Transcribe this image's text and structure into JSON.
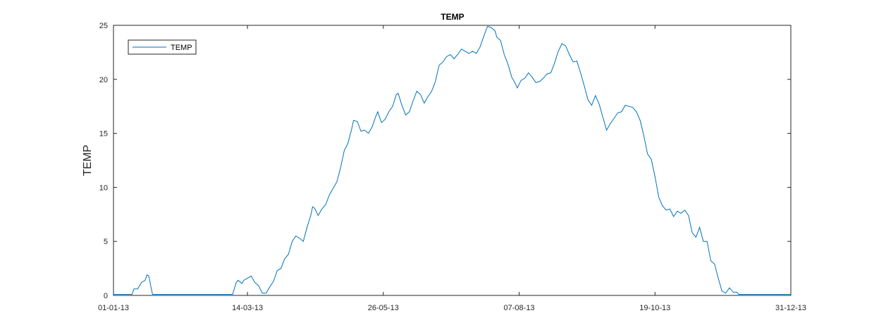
{
  "chart_data": {
    "type": "line",
    "title": "TEMP",
    "xlabel": "",
    "ylabel": "TEMP",
    "ylim": [
      0,
      25
    ],
    "yticks": [
      0,
      5,
      10,
      15,
      20,
      25
    ],
    "xlim": [
      "2013-01-01",
      "2013-12-31"
    ],
    "xticks": [
      "2013-01-01",
      "2013-03-14",
      "2013-05-26",
      "2013-08-07",
      "2013-10-19",
      "2013-12-31"
    ],
    "xtick_labels": [
      "01-01-13",
      "14-03-13",
      "26-05-13",
      "07-08-13",
      "19-10-13",
      "31-12-13"
    ],
    "grid": false,
    "legend": {
      "position": "top-left",
      "entries": [
        "TEMP"
      ]
    },
    "line_color": "#0072BD",
    "series": [
      {
        "name": "TEMP",
        "points": [
          [
            "2013-01-01",
            0.1
          ],
          [
            "2013-01-11",
            0.1
          ],
          [
            "2013-01-12",
            0.6
          ],
          [
            "2013-01-14",
            0.6
          ],
          [
            "2013-01-16",
            1.2
          ],
          [
            "2013-01-18",
            1.4
          ],
          [
            "2013-01-19",
            1.9
          ],
          [
            "2013-01-20",
            1.8
          ],
          [
            "2013-01-21",
            0.9
          ],
          [
            "2013-01-22",
            0.1
          ],
          [
            "2013-03-06",
            0.1
          ],
          [
            "2013-03-08",
            1.2
          ],
          [
            "2013-03-09",
            1.4
          ],
          [
            "2013-03-11",
            1.1
          ],
          [
            "2013-03-12",
            1.4
          ],
          [
            "2013-03-14",
            1.6
          ],
          [
            "2013-03-16",
            1.8
          ],
          [
            "2013-03-18",
            1.2
          ],
          [
            "2013-03-20",
            0.9
          ],
          [
            "2013-03-22",
            0.2
          ],
          [
            "2013-03-24",
            0.2
          ],
          [
            "2013-03-26",
            0.8
          ],
          [
            "2013-03-28",
            1.3
          ],
          [
            "2013-03-30",
            2.3
          ],
          [
            "2013-04-01",
            2.5
          ],
          [
            "2013-04-03",
            3.4
          ],
          [
            "2013-04-05",
            3.8
          ],
          [
            "2013-04-07",
            5.0
          ],
          [
            "2013-04-09",
            5.5
          ],
          [
            "2013-04-11",
            5.3
          ],
          [
            "2013-04-13",
            5.0
          ],
          [
            "2013-04-15",
            6.3
          ],
          [
            "2013-04-17",
            7.4
          ],
          [
            "2013-04-18",
            8.2
          ],
          [
            "2013-04-19",
            8.1
          ],
          [
            "2013-04-21",
            7.4
          ],
          [
            "2013-04-23",
            8.0
          ],
          [
            "2013-04-25",
            8.4
          ],
          [
            "2013-04-27",
            9.3
          ],
          [
            "2013-04-29",
            9.9
          ],
          [
            "2013-05-01",
            10.5
          ],
          [
            "2013-05-03",
            11.8
          ],
          [
            "2013-05-05",
            13.4
          ],
          [
            "2013-05-07",
            14.1
          ],
          [
            "2013-05-09",
            15.4
          ],
          [
            "2013-05-10",
            16.2
          ],
          [
            "2013-05-12",
            16.1
          ],
          [
            "2013-05-14",
            15.2
          ],
          [
            "2013-05-16",
            15.3
          ],
          [
            "2013-05-18",
            15.0
          ],
          [
            "2013-05-20",
            15.6
          ],
          [
            "2013-05-22",
            16.6
          ],
          [
            "2013-05-23",
            17.0
          ],
          [
            "2013-05-25",
            16.0
          ],
          [
            "2013-05-27",
            16.3
          ],
          [
            "2013-05-29",
            17.0
          ],
          [
            "2013-05-31",
            17.5
          ],
          [
            "2013-06-02",
            18.6
          ],
          [
            "2013-06-03",
            18.7
          ],
          [
            "2013-06-05",
            17.6
          ],
          [
            "2013-06-07",
            16.7
          ],
          [
            "2013-06-09",
            17.0
          ],
          [
            "2013-06-11",
            18.0
          ],
          [
            "2013-06-13",
            18.9
          ],
          [
            "2013-06-15",
            18.6
          ],
          [
            "2013-06-17",
            17.8
          ],
          [
            "2013-06-19",
            18.4
          ],
          [
            "2013-06-21",
            18.9
          ],
          [
            "2013-06-23",
            19.8
          ],
          [
            "2013-06-25",
            21.3
          ],
          [
            "2013-06-27",
            21.6
          ],
          [
            "2013-06-29",
            22.1
          ],
          [
            "2013-07-01",
            22.3
          ],
          [
            "2013-07-03",
            21.9
          ],
          [
            "2013-07-05",
            22.3
          ],
          [
            "2013-07-07",
            22.8
          ],
          [
            "2013-07-09",
            22.6
          ],
          [
            "2013-07-11",
            22.4
          ],
          [
            "2013-07-13",
            22.6
          ],
          [
            "2013-07-15",
            22.4
          ],
          [
            "2013-07-17",
            23.0
          ],
          [
            "2013-07-19",
            24.0
          ],
          [
            "2013-07-21",
            24.9
          ],
          [
            "2013-07-23",
            24.8
          ],
          [
            "2013-07-25",
            24.5
          ],
          [
            "2013-07-26",
            23.9
          ],
          [
            "2013-07-28",
            23.6
          ],
          [
            "2013-07-30",
            22.3
          ],
          [
            "2013-08-01",
            21.4
          ],
          [
            "2013-08-03",
            20.2
          ],
          [
            "2013-08-05",
            19.6
          ],
          [
            "2013-08-06",
            19.2
          ],
          [
            "2013-08-08",
            19.9
          ],
          [
            "2013-08-10",
            20.1
          ],
          [
            "2013-08-12",
            20.6
          ],
          [
            "2013-08-14",
            20.2
          ],
          [
            "2013-08-16",
            19.7
          ],
          [
            "2013-08-18",
            19.8
          ],
          [
            "2013-08-20",
            20.1
          ],
          [
            "2013-08-22",
            20.5
          ],
          [
            "2013-08-24",
            20.6
          ],
          [
            "2013-08-26",
            21.5
          ],
          [
            "2013-08-28",
            22.6
          ],
          [
            "2013-08-30",
            23.3
          ],
          [
            "2013-09-01",
            23.1
          ],
          [
            "2013-09-03",
            22.3
          ],
          [
            "2013-09-05",
            21.6
          ],
          [
            "2013-09-07",
            21.7
          ],
          [
            "2013-09-09",
            20.6
          ],
          [
            "2013-09-11",
            19.4
          ],
          [
            "2013-09-13",
            18.1
          ],
          [
            "2013-09-15",
            17.6
          ],
          [
            "2013-09-17",
            18.5
          ],
          [
            "2013-09-19",
            17.7
          ],
          [
            "2013-09-21",
            16.5
          ],
          [
            "2013-09-23",
            15.3
          ],
          [
            "2013-09-25",
            15.9
          ],
          [
            "2013-09-27",
            16.4
          ],
          [
            "2013-09-29",
            16.9
          ],
          [
            "2013-10-01",
            17.0
          ],
          [
            "2013-10-03",
            17.6
          ],
          [
            "2013-10-05",
            17.5
          ],
          [
            "2013-10-07",
            17.4
          ],
          [
            "2013-10-09",
            17.0
          ],
          [
            "2013-10-11",
            16.2
          ],
          [
            "2013-10-13",
            14.8
          ],
          [
            "2013-10-15",
            13.1
          ],
          [
            "2013-10-17",
            12.6
          ],
          [
            "2013-10-19",
            11.0
          ],
          [
            "2013-10-21",
            9.1
          ],
          [
            "2013-10-23",
            8.3
          ],
          [
            "2013-10-25",
            7.9
          ],
          [
            "2013-10-27",
            8.0
          ],
          [
            "2013-10-29",
            7.3
          ],
          [
            "2013-10-31",
            7.8
          ],
          [
            "2013-11-02",
            7.6
          ],
          [
            "2013-11-04",
            7.9
          ],
          [
            "2013-11-06",
            7.4
          ],
          [
            "2013-11-08",
            5.8
          ],
          [
            "2013-11-10",
            5.4
          ],
          [
            "2013-11-12",
            6.3
          ],
          [
            "2013-11-14",
            5.0
          ],
          [
            "2013-11-16",
            5.0
          ],
          [
            "2013-11-18",
            3.2
          ],
          [
            "2013-11-20",
            2.9
          ],
          [
            "2013-11-22",
            1.6
          ],
          [
            "2013-11-24",
            0.4
          ],
          [
            "2013-11-26",
            0.2
          ],
          [
            "2013-11-28",
            0.7
          ],
          [
            "2013-11-30",
            0.3
          ],
          [
            "2013-12-02",
            0.3
          ],
          [
            "2013-12-03",
            0.1
          ],
          [
            "2013-12-31",
            0.1
          ]
        ]
      }
    ]
  }
}
